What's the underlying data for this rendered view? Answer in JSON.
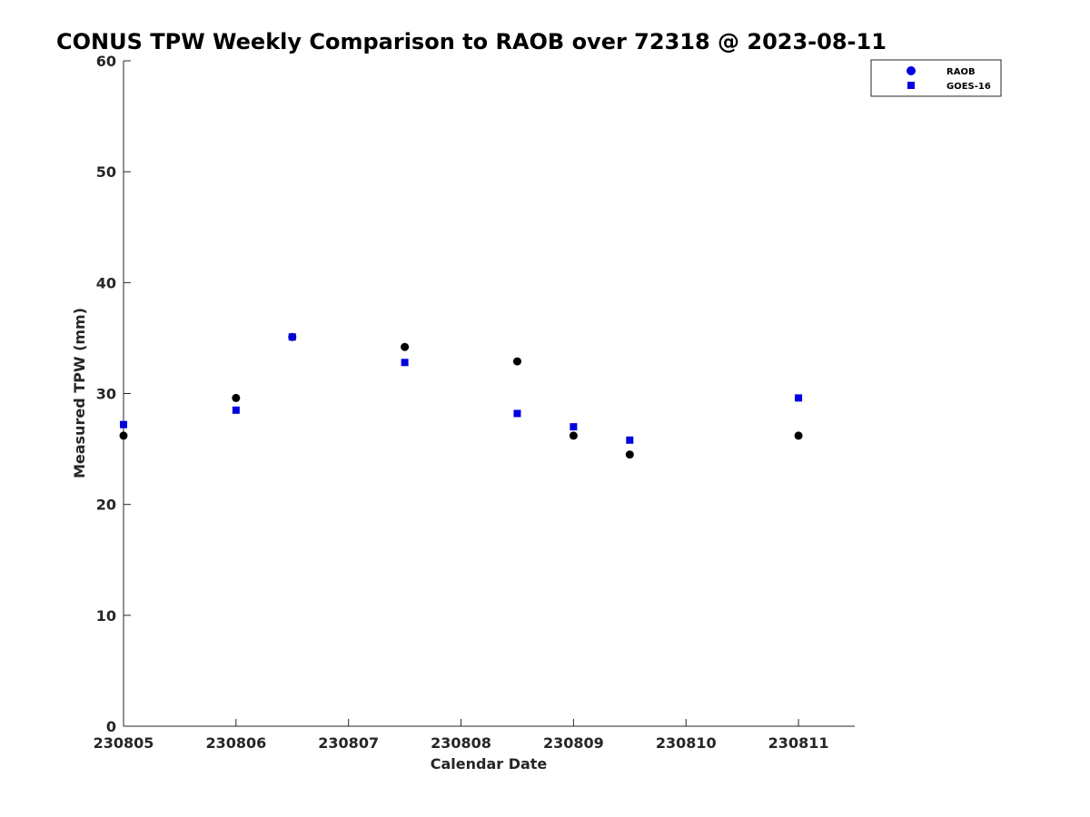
{
  "chart_data": {
    "type": "scatter",
    "title": "CONUS TPW Weekly Comparison to RAOB over 72318 @ 2023-08-11",
    "xlabel": "Calendar Date",
    "ylabel": "Measured TPW (mm)",
    "xlim": [
      230805,
      230811.5
    ],
    "ylim": [
      0,
      60
    ],
    "x_ticks": [
      230805,
      230806,
      230807,
      230808,
      230809,
      230810,
      230811
    ],
    "x_tick_labels": [
      "230805",
      "230806",
      "230807",
      "230808",
      "230809",
      "230810",
      "230811"
    ],
    "y_ticks": [
      0,
      10,
      20,
      30,
      40,
      50,
      60
    ],
    "y_tick_labels": [
      "0",
      "10",
      "20",
      "30",
      "40",
      "50",
      "60"
    ],
    "grid": false,
    "legend_position": "top-right",
    "series": [
      {
        "name": "RAOB",
        "marker": "circle",
        "color": "#000000",
        "legend_color": "#0000e0",
        "points": [
          {
            "x": 230805.0,
            "y": 26.2
          },
          {
            "x": 230806.0,
            "y": 29.6
          },
          {
            "x": 230806.5,
            "y": 35.1
          },
          {
            "x": 230807.5,
            "y": 34.2
          },
          {
            "x": 230808.5,
            "y": 32.9
          },
          {
            "x": 230809.0,
            "y": 26.2
          },
          {
            "x": 230809.5,
            "y": 24.5
          },
          {
            "x": 230811.0,
            "y": 26.2
          }
        ]
      },
      {
        "name": "GOES-16",
        "marker": "square",
        "color": "#0000e0",
        "points": [
          {
            "x": 230805.0,
            "y": 27.2
          },
          {
            "x": 230806.0,
            "y": 28.5
          },
          {
            "x": 230806.5,
            "y": 35.1
          },
          {
            "x": 230807.5,
            "y": 32.8
          },
          {
            "x": 230808.5,
            "y": 28.2
          },
          {
            "x": 230809.0,
            "y": 27.0
          },
          {
            "x": 230809.5,
            "y": 25.8
          },
          {
            "x": 230811.0,
            "y": 29.6
          }
        ]
      }
    ]
  }
}
